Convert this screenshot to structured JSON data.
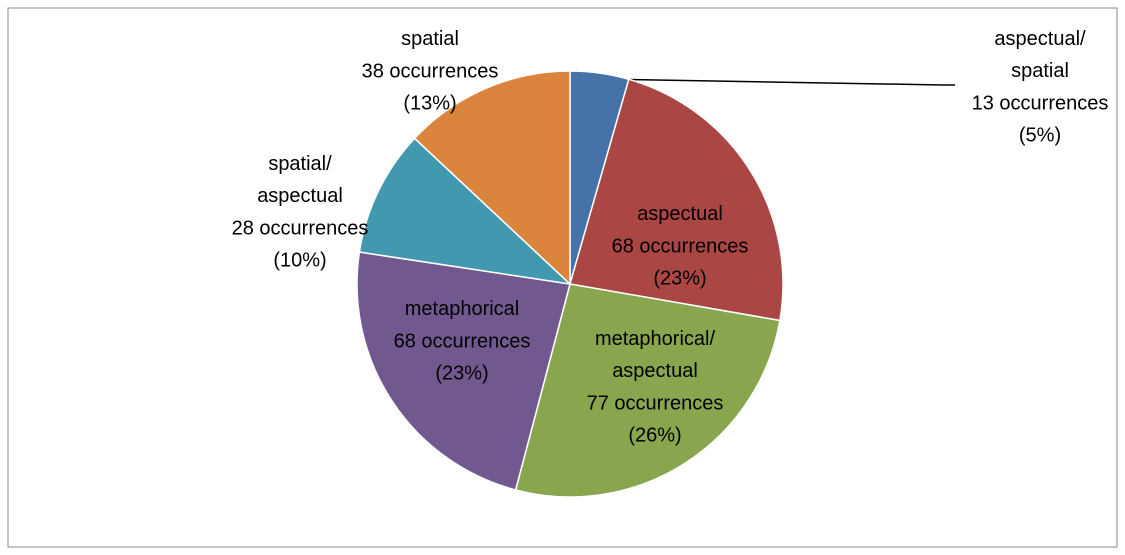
{
  "chart_data": {
    "type": "pie",
    "categories": [
      "aspectual/spatial",
      "aspectual",
      "metaphorical/aspectual",
      "metaphorical",
      "spatial/aspectual",
      "spatial"
    ],
    "values": [
      13,
      68,
      77,
      68,
      28,
      38
    ],
    "value_labels": [
      "13 occurrences",
      "68 occurrences",
      "77 occurrences",
      "68 occurrences",
      "28 occurrences",
      "38 occurrences"
    ],
    "percent_labels": [
      "(5%)",
      "(23%)",
      "(26%)",
      "(23%)",
      "(10%)",
      "(13%)"
    ],
    "colors": [
      "#4572a7",
      "#aa4643",
      "#89a54e",
      "#71588f",
      "#4198af",
      "#db843d"
    ]
  }
}
